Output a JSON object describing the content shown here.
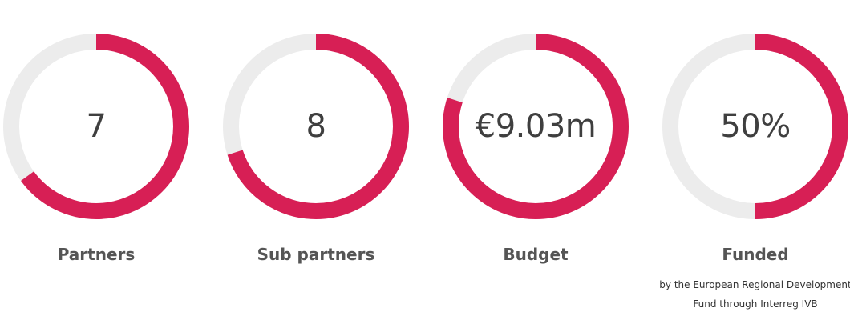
{
  "colors": {
    "accent": "#d71f55",
    "track": "#ececec"
  },
  "stats": [
    {
      "value": "7",
      "label": "Partners",
      "progress_percent": 65,
      "note_line_1": "",
      "note_line_2": ""
    },
    {
      "value": "8",
      "label": "Sub partners",
      "progress_percent": 70,
      "note_line_1": "",
      "note_line_2": ""
    },
    {
      "value": "€9.03m",
      "label": "Budget",
      "progress_percent": 80,
      "note_line_1": "",
      "note_line_2": ""
    },
    {
      "value": "50%",
      "label": "Funded",
      "progress_percent": 50,
      "note_line_1": "by the European Regional Development",
      "note_line_2": "Fund through Interreg IVB"
    }
  ]
}
